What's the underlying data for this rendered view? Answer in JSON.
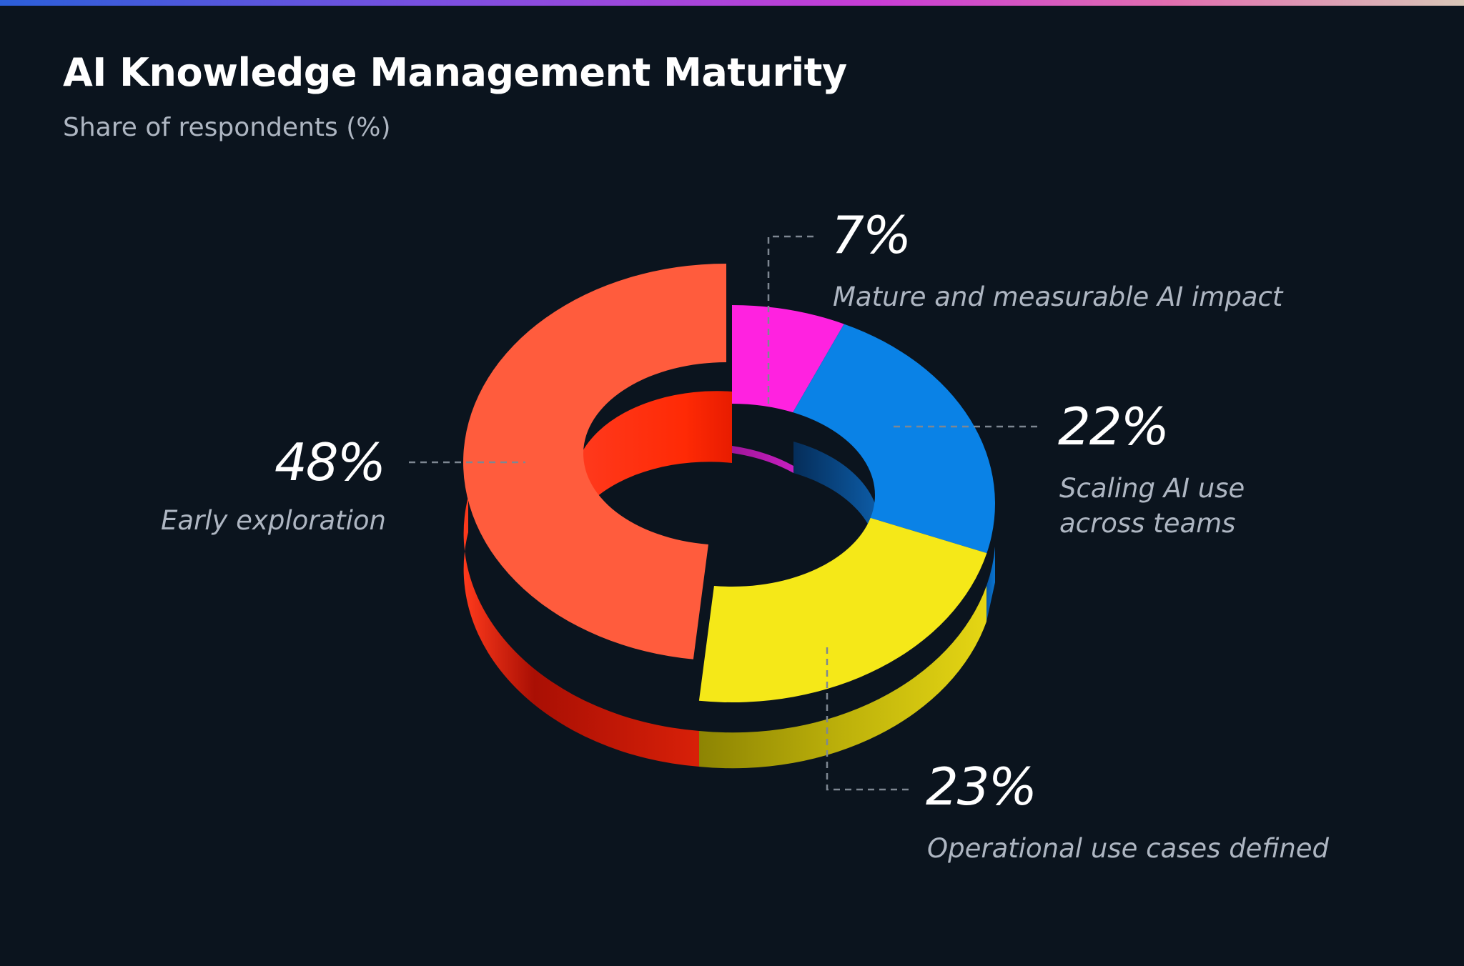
{
  "header": {
    "title": "AI Knowledge Management Maturity",
    "subtitle": "Share of respondents (%)"
  },
  "chart_data": {
    "type": "pie",
    "style": "3d-donut",
    "title": "AI Knowledge Management Maturity",
    "subtitle": "Share of respondents (%)",
    "unit": "%",
    "slices": [
      {
        "label": "Mature and measurable AI impact",
        "value": 7,
        "value_label": "7%",
        "color": "#ff22e0"
      },
      {
        "label": "Scaling AI use across teams",
        "value": 22,
        "value_label": "22%",
        "color": "#0a82e6"
      },
      {
        "label": "Operational use cases defined",
        "value": 23,
        "value_label": "23%",
        "color": "#f5e818"
      },
      {
        "label": "Early exploration",
        "value": 48,
        "value_label": "48%",
        "color": "#ff5c3d"
      }
    ]
  }
}
